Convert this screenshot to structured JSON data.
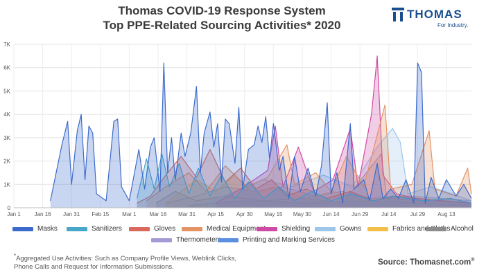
{
  "title_line1": "Thomas COVID-19 Response System",
  "title_line2": "Top PPE-Related Sourcing Activities* 2020",
  "logo": {
    "name": "THOMAS",
    "tagline": "For Industry."
  },
  "footnote": {
    "marker": "*",
    "line1": "Aggregated Use Activities: Such as Company Profile Views, Weblink Clicks,",
    "line2": "Phone Calls and Request for Information Submissions."
  },
  "source": {
    "text": "Source: Thomasnet.com",
    "mark": "®"
  },
  "chart_data": {
    "type": "area",
    "title": "Thomas COVID-19 Response System Top PPE-Related Sourcing Activities* 2020",
    "x_ticks": [
      "Jan 1",
      "Jan 16",
      "Jan 31",
      "Feb 15",
      "Mar 1",
      "Mar 16",
      "Mar 31",
      "Apr 15",
      "Apr 30",
      "May 15",
      "May 30",
      "Jun 14",
      "Jun 29",
      "Jul 14",
      "Jul 29",
      "Aug 13"
    ],
    "xlim": [
      "2020-01-01",
      "2020-08-26"
    ],
    "y_ticks": [
      "0",
      "1K",
      "2K",
      "3K",
      "4K",
      "5K",
      "6K",
      "7K"
    ],
    "ylim": [
      0,
      7000
    ],
    "grid": true,
    "legend_position": "bottom",
    "series": [
      {
        "name": "Masks",
        "color": "#3d6bcc",
        "points": [
          [
            "2020-01-20",
            300
          ],
          [
            "2020-01-26",
            2700
          ],
          [
            "2020-01-29",
            3700
          ],
          [
            "2020-01-31",
            1000
          ],
          [
            "2020-02-03",
            3300
          ],
          [
            "2020-02-05",
            4000
          ],
          [
            "2020-02-07",
            1200
          ],
          [
            "2020-02-09",
            3500
          ],
          [
            "2020-02-11",
            3200
          ],
          [
            "2020-02-13",
            600
          ],
          [
            "2020-02-18",
            300
          ],
          [
            "2020-02-22",
            3700
          ],
          [
            "2020-02-24",
            3800
          ],
          [
            "2020-02-26",
            900
          ],
          [
            "2020-03-01",
            300
          ],
          [
            "2020-03-06",
            2500
          ],
          [
            "2020-03-09",
            800
          ],
          [
            "2020-03-12",
            2600
          ],
          [
            "2020-03-14",
            3000
          ],
          [
            "2020-03-17",
            700
          ],
          [
            "2020-03-19",
            6200
          ],
          [
            "2020-03-21",
            1500
          ],
          [
            "2020-03-23",
            3000
          ],
          [
            "2020-03-25",
            1200
          ],
          [
            "2020-03-28",
            3200
          ],
          [
            "2020-03-30",
            2200
          ],
          [
            "2020-04-02",
            3200
          ],
          [
            "2020-04-05",
            5200
          ],
          [
            "2020-04-07",
            1500
          ],
          [
            "2020-04-09",
            3200
          ],
          [
            "2020-04-12",
            4100
          ],
          [
            "2020-04-14",
            2600
          ],
          [
            "2020-04-16",
            3600
          ],
          [
            "2020-04-18",
            1100
          ],
          [
            "2020-04-20",
            3800
          ],
          [
            "2020-04-22",
            3600
          ],
          [
            "2020-04-25",
            1900
          ],
          [
            "2020-04-27",
            4300
          ],
          [
            "2020-04-29",
            800
          ],
          [
            "2020-05-02",
            2500
          ],
          [
            "2020-05-05",
            2700
          ],
          [
            "2020-05-07",
            3500
          ],
          [
            "2020-05-09",
            2800
          ],
          [
            "2020-05-11",
            3900
          ],
          [
            "2020-05-13",
            2100
          ],
          [
            "2020-05-15",
            3600
          ],
          [
            "2020-05-18",
            1600
          ],
          [
            "2020-05-20",
            2200
          ],
          [
            "2020-05-23",
            400
          ],
          [
            "2020-05-26",
            2200
          ],
          [
            "2020-05-29",
            700
          ],
          [
            "2020-06-02",
            1700
          ],
          [
            "2020-06-06",
            500
          ],
          [
            "2020-06-09",
            1800
          ],
          [
            "2020-06-12",
            4500
          ],
          [
            "2020-06-14",
            600
          ],
          [
            "2020-06-17",
            1500
          ],
          [
            "2020-06-20",
            200
          ],
          [
            "2020-06-24",
            3600
          ],
          [
            "2020-06-26",
            800
          ],
          [
            "2020-07-01",
            1200
          ],
          [
            "2020-07-04",
            300
          ],
          [
            "2020-07-08",
            1900
          ],
          [
            "2020-07-11",
            400
          ],
          [
            "2020-07-15",
            800
          ],
          [
            "2020-07-19",
            400
          ],
          [
            "2020-07-23",
            1200
          ],
          [
            "2020-07-27",
            200
          ],
          [
            "2020-07-29",
            6200
          ],
          [
            "2020-07-31",
            5800
          ],
          [
            "2020-08-02",
            200
          ],
          [
            "2020-08-05",
            1300
          ],
          [
            "2020-08-09",
            400
          ],
          [
            "2020-08-13",
            1200
          ],
          [
            "2020-08-18",
            500
          ],
          [
            "2020-08-22",
            1000
          ],
          [
            "2020-08-26",
            400
          ]
        ]
      },
      {
        "name": "Sanitizers",
        "color": "#49a6c9",
        "points": [
          [
            "2020-03-05",
            400
          ],
          [
            "2020-03-10",
            2100
          ],
          [
            "2020-03-14",
            800
          ],
          [
            "2020-03-18",
            2300
          ],
          [
            "2020-03-22",
            900
          ],
          [
            "2020-03-27",
            1900
          ],
          [
            "2020-04-01",
            600
          ],
          [
            "2020-04-06",
            1700
          ],
          [
            "2020-04-12",
            500
          ],
          [
            "2020-04-18",
            1400
          ],
          [
            "2020-04-25",
            400
          ],
          [
            "2020-05-02",
            1100
          ],
          [
            "2020-05-10",
            400
          ],
          [
            "2020-05-18",
            900
          ],
          [
            "2020-05-26",
            300
          ],
          [
            "2020-06-04",
            700
          ],
          [
            "2020-06-14",
            300
          ],
          [
            "2020-06-24",
            600
          ],
          [
            "2020-07-06",
            300
          ],
          [
            "2020-07-16",
            500
          ],
          [
            "2020-08-01",
            300
          ],
          [
            "2020-08-15",
            400
          ],
          [
            "2020-08-26",
            200
          ]
        ]
      },
      {
        "name": "Gloves",
        "color": "#d9685d",
        "points": [
          [
            "2020-03-05",
            200
          ],
          [
            "2020-03-12",
            500
          ],
          [
            "2020-03-20",
            1400
          ],
          [
            "2020-03-28",
            2200
          ],
          [
            "2020-04-05",
            1300
          ],
          [
            "2020-04-12",
            2500
          ],
          [
            "2020-04-20",
            1100
          ],
          [
            "2020-04-28",
            1700
          ],
          [
            "2020-05-06",
            800
          ],
          [
            "2020-05-14",
            1200
          ],
          [
            "2020-05-22",
            500
          ],
          [
            "2020-06-01",
            800
          ],
          [
            "2020-06-12",
            400
          ],
          [
            "2020-06-24",
            700
          ],
          [
            "2020-07-06",
            300
          ],
          [
            "2020-07-18",
            500
          ],
          [
            "2020-08-01",
            300
          ],
          [
            "2020-08-15",
            400
          ],
          [
            "2020-08-26",
            200
          ]
        ]
      },
      {
        "name": "Medical Equipment",
        "color": "#e39364",
        "points": [
          [
            "2020-03-10",
            300
          ],
          [
            "2020-03-20",
            900
          ],
          [
            "2020-04-01",
            1500
          ],
          [
            "2020-04-10",
            700
          ],
          [
            "2020-04-20",
            1800
          ],
          [
            "2020-05-01",
            900
          ],
          [
            "2020-05-12",
            1300
          ],
          [
            "2020-05-22",
            2700
          ],
          [
            "2020-05-26",
            1000
          ],
          [
            "2020-06-06",
            1500
          ],
          [
            "2020-06-14",
            700
          ],
          [
            "2020-06-22",
            2200
          ],
          [
            "2020-07-01",
            900
          ],
          [
            "2020-07-12",
            4400
          ],
          [
            "2020-07-15",
            800
          ],
          [
            "2020-07-26",
            1000
          ],
          [
            "2020-08-04",
            3300
          ],
          [
            "2020-08-07",
            800
          ],
          [
            "2020-08-18",
            500
          ],
          [
            "2020-08-24",
            1700
          ],
          [
            "2020-08-26",
            600
          ]
        ]
      },
      {
        "name": "Shielding",
        "color": "#cf4aa6",
        "points": [
          [
            "2020-04-15",
            200
          ],
          [
            "2020-04-28",
            800
          ],
          [
            "2020-05-12",
            1600
          ],
          [
            "2020-05-16",
            3500
          ],
          [
            "2020-05-20",
            900
          ],
          [
            "2020-05-28",
            2600
          ],
          [
            "2020-06-05",
            700
          ],
          [
            "2020-06-15",
            1200
          ],
          [
            "2020-06-24",
            3400
          ],
          [
            "2020-06-28",
            900
          ],
          [
            "2020-07-05",
            4000
          ],
          [
            "2020-07-08",
            6500
          ],
          [
            "2020-07-11",
            1400
          ],
          [
            "2020-07-18",
            600
          ],
          [
            "2020-07-28",
            400
          ],
          [
            "2020-08-10",
            300
          ],
          [
            "2020-08-26",
            200
          ]
        ]
      },
      {
        "name": "Gowns",
        "color": "#9ec6ea",
        "points": [
          [
            "2020-04-10",
            200
          ],
          [
            "2020-04-25",
            700
          ],
          [
            "2020-05-10",
            1200
          ],
          [
            "2020-05-25",
            900
          ],
          [
            "2020-06-10",
            1400
          ],
          [
            "2020-06-25",
            900
          ],
          [
            "2020-07-08",
            2600
          ],
          [
            "2020-07-16",
            3400
          ],
          [
            "2020-07-20",
            2800
          ],
          [
            "2020-07-24",
            600
          ],
          [
            "2020-08-05",
            900
          ],
          [
            "2020-08-26",
            300
          ]
        ]
      },
      {
        "name": "Fabrics and Cloths",
        "color": "#f2c04a",
        "points": [
          [
            "2020-03-20",
            200
          ],
          [
            "2020-04-05",
            1200
          ],
          [
            "2020-04-15",
            700
          ],
          [
            "2020-04-25",
            1400
          ],
          [
            "2020-05-05",
            600
          ],
          [
            "2020-05-15",
            900
          ],
          [
            "2020-06-01",
            400
          ],
          [
            "2020-06-15",
            700
          ],
          [
            "2020-07-01",
            300
          ],
          [
            "2020-07-20",
            500
          ],
          [
            "2020-08-26",
            200
          ]
        ]
      },
      {
        "name": "Alcohol",
        "color": "#8c8c8c",
        "points": [
          [
            "2020-03-15",
            200
          ],
          [
            "2020-03-25",
            700
          ],
          [
            "2020-04-05",
            300
          ],
          [
            "2020-04-20",
            500
          ],
          [
            "2020-05-10",
            300
          ],
          [
            "2020-06-01",
            400
          ],
          [
            "2020-06-20",
            200
          ],
          [
            "2020-07-10",
            2300
          ],
          [
            "2020-07-13",
            400
          ],
          [
            "2020-08-01",
            300
          ],
          [
            "2020-08-26",
            200
          ]
        ]
      },
      {
        "name": "Thermometers",
        "color": "#a29bd6",
        "points": [
          [
            "2020-03-20",
            200
          ],
          [
            "2020-04-05",
            500
          ],
          [
            "2020-04-20",
            900
          ],
          [
            "2020-05-05",
            700
          ],
          [
            "2020-05-20",
            900
          ],
          [
            "2020-06-05",
            500
          ],
          [
            "2020-06-20",
            700
          ],
          [
            "2020-07-05",
            400
          ],
          [
            "2020-07-25",
            500
          ],
          [
            "2020-08-26",
            300
          ]
        ]
      },
      {
        "name": "Printing and Marking Services",
        "color": "#5b8fe0",
        "points": [
          [
            "2020-04-01",
            100
          ],
          [
            "2020-05-01",
            300
          ],
          [
            "2020-06-01",
            200
          ],
          [
            "2020-07-01",
            300
          ],
          [
            "2020-08-01",
            200
          ],
          [
            "2020-08-26",
            100
          ]
        ]
      }
    ]
  }
}
